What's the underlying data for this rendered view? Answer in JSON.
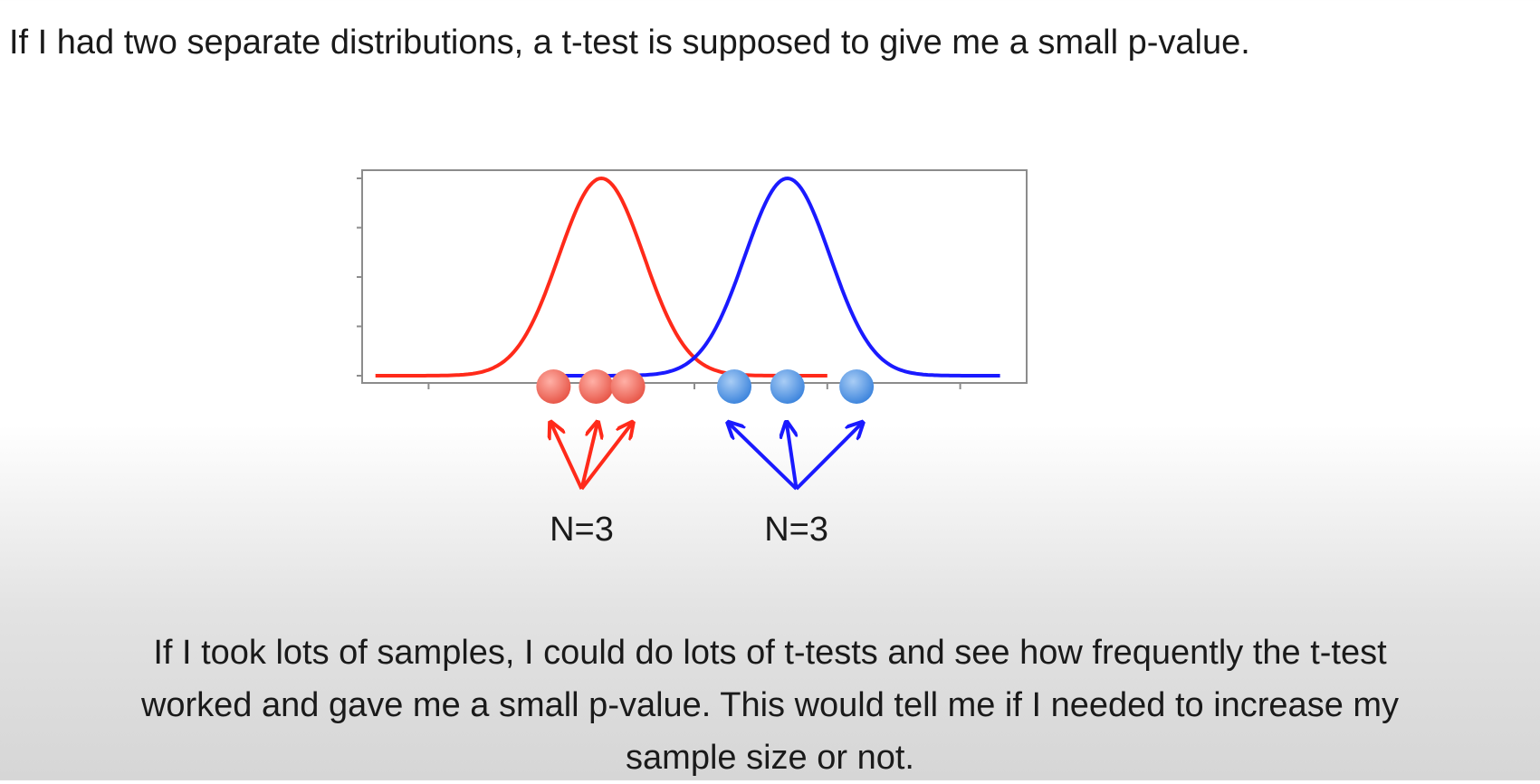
{
  "slide": {
    "top_text": "If I had two separate distributions, a t-test is supposed to give me a small p-value.",
    "bottom_text_lines": [
      "If I took lots of samples, I could do lots of t-tests and see how frequently the t-test",
      "worked and gave me a small p-value. This would tell me if I needed to increase my",
      "sample size or not."
    ]
  },
  "chart_data": {
    "type": "line",
    "title": "",
    "xlabel": "",
    "ylabel": "",
    "xlim": [
      0,
      25
    ],
    "ylim": [
      0,
      1
    ],
    "grid": false,
    "legend": "none",
    "series": [
      {
        "color": "#ff2a1a",
        "mean": 9,
        "sd": 1.6,
        "x_range": [
          0.5,
          17.5
        ],
        "samples": [
          7.2,
          8.8,
          10.0
        ],
        "sample_color": "#f07264",
        "n_label": "N=3"
      },
      {
        "color": "#1a1aff",
        "mean": 16,
        "sd": 1.6,
        "x_range": [
          7.0,
          24.0
        ],
        "samples": [
          14.0,
          16.0,
          18.6
        ],
        "sample_color": "#5b9be6",
        "n_label": "N=3"
      }
    ]
  }
}
